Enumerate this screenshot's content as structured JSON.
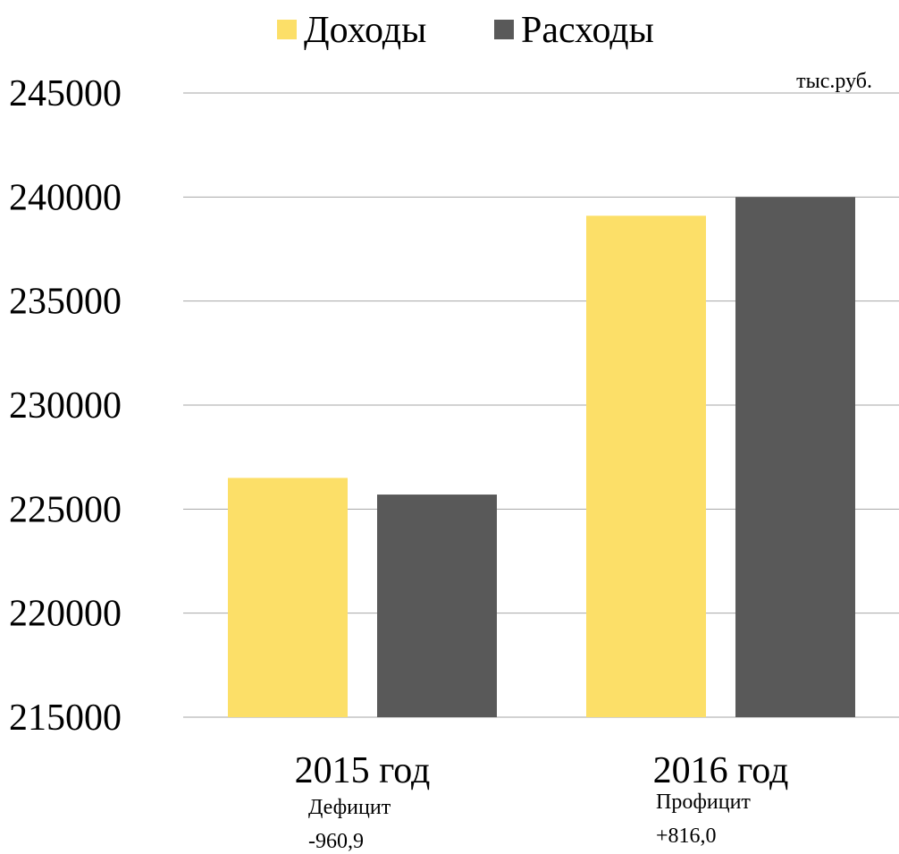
{
  "chart_data": {
    "type": "bar",
    "categories": [
      "2015 год",
      "2016 год"
    ],
    "series": [
      {
        "name": "Доходы",
        "color": "#fcdf68",
        "values": [
          226500,
          239100
        ]
      },
      {
        "name": "Расходы",
        "color": "#595959",
        "values": [
          225700,
          240000
        ]
      }
    ],
    "ylim": [
      215000,
      245000
    ],
    "yticks": [
      215000,
      220000,
      225000,
      230000,
      235000,
      240000,
      245000
    ],
    "grid": true,
    "legend": "top",
    "unit": "тыс.руб.",
    "notes": [
      [
        "Дефицит",
        "-960,9"
      ],
      [
        "Профицит",
        "+816,0"
      ]
    ]
  }
}
